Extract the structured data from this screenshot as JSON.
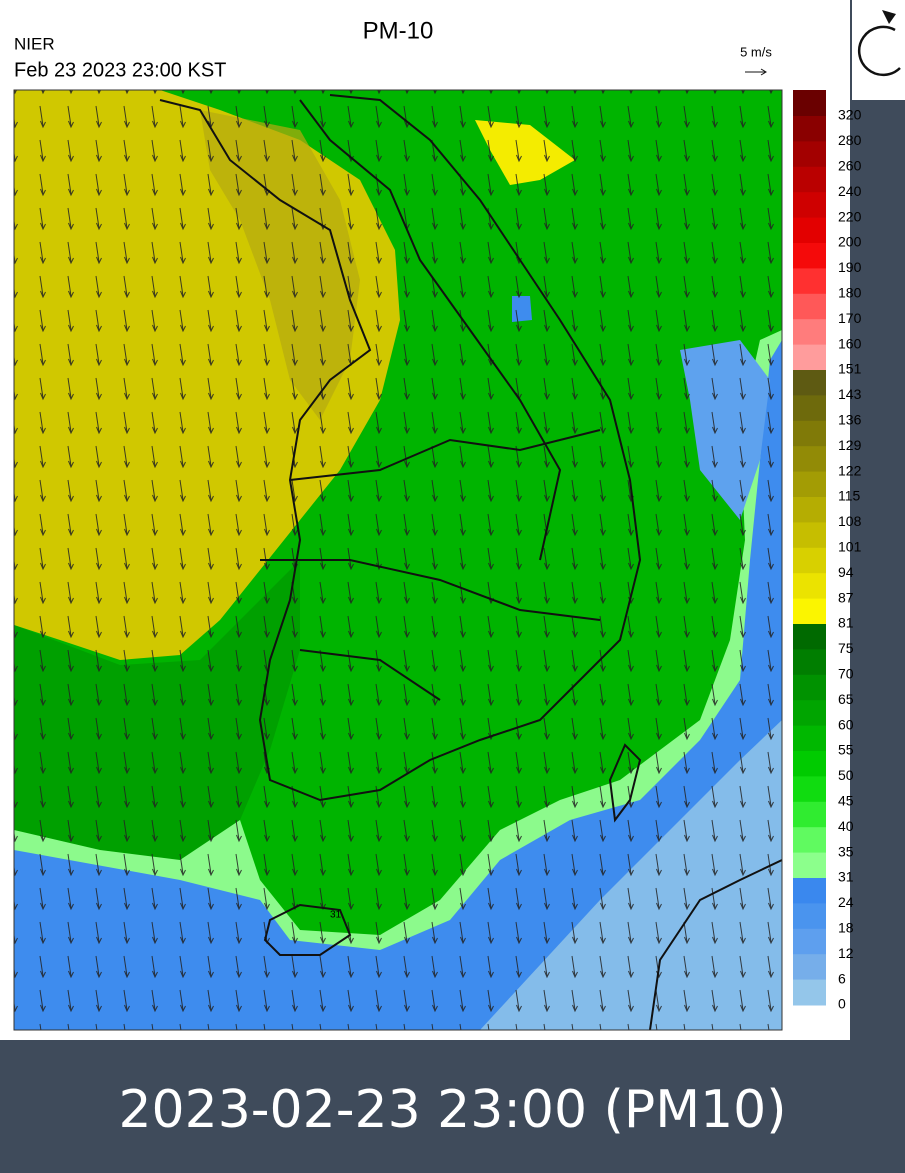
{
  "header": {
    "title": "PM-10",
    "source": "NIER",
    "timestamp": "Feb 23 2023 23:00 KST",
    "wind_scale": "5 m/s"
  },
  "contour_label": "31",
  "legend": {
    "labels": [
      "320",
      "280",
      "260",
      "240",
      "220",
      "200",
      "190",
      "180",
      "170",
      "160",
      "151",
      "143",
      "136",
      "129",
      "122",
      "115",
      "108",
      "101",
      "94",
      "87",
      "81",
      "75",
      "70",
      "65",
      "60",
      "55",
      "50",
      "45",
      "40",
      "35",
      "31",
      "24",
      "18",
      "12",
      "6",
      "0"
    ],
    "colors": [
      "#6a0000",
      "#8a0000",
      "#a30000",
      "#ba0000",
      "#cf0000",
      "#e30000",
      "#f50a0a",
      "#ff3030",
      "#ff5858",
      "#ff7c7c",
      "#ff9c9c",
      "#5e5a12",
      "#6e6a0c",
      "#807a08",
      "#928b06",
      "#a39c04",
      "#b5ad02",
      "#c6be00",
      "#d8d000",
      "#ebe300",
      "#fbf500",
      "#006a00",
      "#007e00",
      "#009200",
      "#00a500",
      "#00b800",
      "#00cb00",
      "#10dc10",
      "#30ec30",
      "#60fa60",
      "#8cff8c",
      "#3a88ee",
      "#4a94ee",
      "#5e9fee",
      "#76aeea",
      "#94c6ea"
    ]
  },
  "caption": "2023-02-23 23:00  (PM10)"
}
